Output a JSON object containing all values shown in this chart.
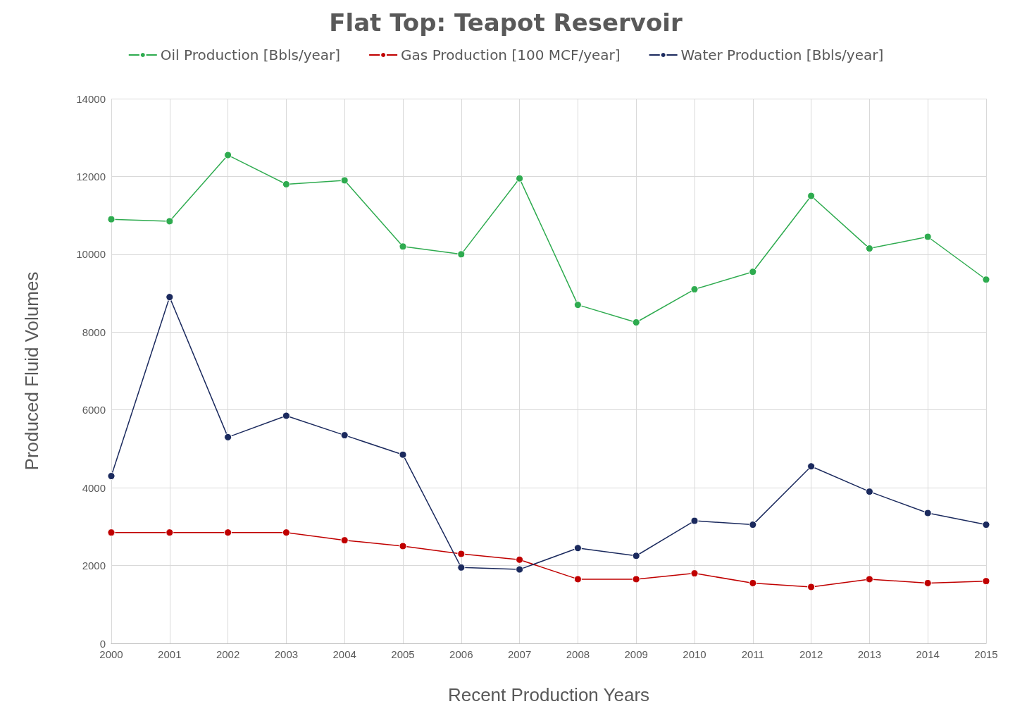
{
  "chart_data": {
    "type": "line",
    "title": "Flat Top: Teapot Reservoir",
    "xlabel": "Recent Production Years",
    "ylabel": "Produced Fluid Volumes",
    "categories": [
      "2000",
      "2001",
      "2002",
      "2003",
      "2004",
      "2005",
      "2006",
      "2007",
      "2008",
      "2009",
      "2010",
      "2011",
      "2012",
      "2013",
      "2014",
      "2015"
    ],
    "series": [
      {
        "name": "Oil Production [Bbls/year]",
        "color": "#2eab4f",
        "values": [
          10900,
          10850,
          12550,
          11800,
          11900,
          10200,
          10000,
          11950,
          8700,
          8250,
          9100,
          9550,
          11500,
          10150,
          10450,
          9350
        ]
      },
      {
        "name": "Gas Production [100 MCF/year]",
        "color": "#c00000",
        "values": [
          2850,
          2850,
          2850,
          2850,
          2650,
          2500,
          2300,
          2150,
          1650,
          1650,
          1800,
          1550,
          1450,
          1650,
          1550,
          1600
        ]
      },
      {
        "name": "Water Production [Bbls/year]",
        "color": "#1b2a5e",
        "values": [
          4300,
          8900,
          5300,
          5850,
          5350,
          4850,
          1950,
          1900,
          2450,
          2250,
          3150,
          3050,
          4550,
          3900,
          3350,
          3050
        ]
      }
    ],
    "ylim": [
      0,
      14000
    ],
    "yticks": [
      0,
      2000,
      4000,
      6000,
      8000,
      10000,
      12000,
      14000
    ],
    "grid": true,
    "legend": "top",
    "marker": "circle",
    "line_style": "solid"
  }
}
